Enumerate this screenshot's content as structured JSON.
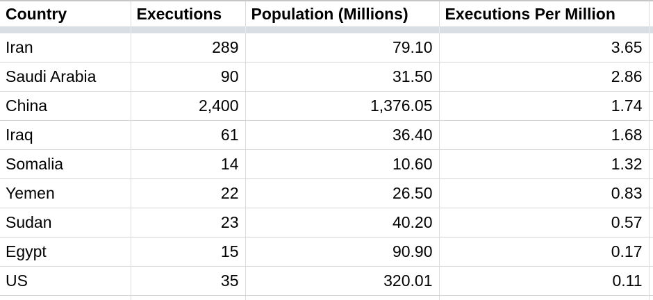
{
  "table": {
    "headers": [
      "Country",
      "Executions",
      "Population (Millions)",
      "Executions Per Million"
    ],
    "rows": [
      {
        "country": "Iran",
        "executions": "289",
        "population_millions": "79.10",
        "executions_per_million": "3.65"
      },
      {
        "country": "Saudi Arabia",
        "executions": "90",
        "population_millions": "31.50",
        "executions_per_million": "2.86"
      },
      {
        "country": "China",
        "executions": "2,400",
        "population_millions": "1,376.05",
        "executions_per_million": "1.74"
      },
      {
        "country": "Iraq",
        "executions": "61",
        "population_millions": "36.40",
        "executions_per_million": "1.68"
      },
      {
        "country": "Somalia",
        "executions": "14",
        "population_millions": "10.60",
        "executions_per_million": "1.32"
      },
      {
        "country": "Yemen",
        "executions": "22",
        "population_millions": "26.50",
        "executions_per_million": "0.83"
      },
      {
        "country": "Sudan",
        "executions": "23",
        "population_millions": "40.20",
        "executions_per_million": "0.57"
      },
      {
        "country": "Egypt",
        "executions": "15",
        "population_millions": "90.90",
        "executions_per_million": "0.17"
      },
      {
        "country": "US",
        "executions": "35",
        "population_millions": "320.01",
        "executions_per_million": "0.11"
      }
    ]
  },
  "colors": {
    "frozen_row_band": "#d9dee4",
    "gridline": "#dcdcdc",
    "row_divider": "#d5d5d5",
    "top_border": "#c6c6c6",
    "text": "#000000",
    "background": "#ffffff"
  }
}
